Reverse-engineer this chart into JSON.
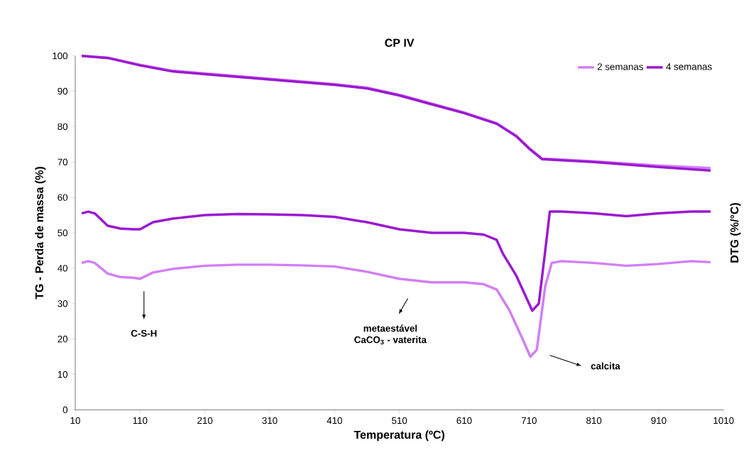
{
  "chart_data": {
    "type": "line",
    "title": "CP IV",
    "xlabel": "Temperatura (ºC)",
    "ylabel": "TG - Perda de massa (%)",
    "y2label": "DTG (%/°C)",
    "xlim": [
      10,
      1010
    ],
    "xticks": [
      10,
      110,
      210,
      310,
      410,
      510,
      610,
      710,
      810,
      910,
      1010
    ],
    "ylim": [
      0,
      100
    ],
    "yticks": [
      0,
      10,
      20,
      30,
      40,
      50,
      60,
      70,
      80,
      90,
      100
    ],
    "grid": false,
    "legend": "top right",
    "marker": "none",
    "line_style": "solid",
    "series": [
      {
        "name": "2 semanas",
        "color": "#d27ef5",
        "x": [
          20,
          60,
          110,
          160,
          210,
          310,
          410,
          460,
          510,
          560,
          610,
          660,
          690,
          710,
          730,
          810,
          910,
          990
        ],
        "values": [
          100,
          99.5,
          97.5,
          95.8,
          95,
          93.5,
          92,
          91,
          89,
          86.5,
          84,
          81,
          77.5,
          74,
          71,
          70.2,
          69,
          68.3
        ]
      },
      {
        "name": "4 semanas",
        "color": "#9b19d0",
        "x": [
          20,
          60,
          110,
          160,
          210,
          310,
          410,
          460,
          510,
          560,
          610,
          660,
          690,
          710,
          730,
          810,
          910,
          990
        ],
        "values": [
          100,
          99.4,
          97.3,
          95.6,
          94.8,
          93.3,
          91.8,
          90.8,
          88.8,
          86.3,
          83.8,
          80.8,
          77.3,
          73.8,
          70.8,
          70,
          68.6,
          67.6
        ]
      },
      {
        "color": "#d27ef5",
        "x": [
          20,
          30,
          40,
          60,
          80,
          100,
          110,
          130,
          160,
          210,
          260,
          310,
          360,
          410,
          460,
          510,
          560,
          610,
          640,
          660,
          680,
          700,
          712,
          722,
          735,
          745,
          760,
          810,
          860,
          910,
          960,
          990
        ],
        "values": [
          41.5,
          42,
          41.5,
          38.5,
          37.5,
          37.3,
          37,
          38.8,
          39.8,
          40.7,
          41,
          41,
          40.8,
          40.5,
          39,
          37,
          36,
          36,
          35.5,
          34,
          28,
          20,
          15,
          17,
          35,
          41.5,
          42,
          41.5,
          40.7,
          41.2,
          42,
          41.7
        ]
      },
      {
        "color": "#9b19d0",
        "x": [
          20,
          30,
          40,
          60,
          80,
          100,
          110,
          130,
          160,
          210,
          260,
          310,
          360,
          410,
          460,
          510,
          560,
          610,
          640,
          660,
          670,
          690,
          710,
          715,
          725,
          735,
          742,
          760,
          810,
          860,
          910,
          960,
          990
        ],
        "values": [
          55.5,
          56,
          55.5,
          52,
          51.2,
          51,
          51,
          53,
          54,
          55,
          55.3,
          55.2,
          55,
          54.5,
          53,
          51,
          50,
          50,
          49.5,
          48,
          44,
          38,
          30,
          28,
          30,
          45,
          56,
          56,
          55.5,
          54.7,
          55.5,
          56,
          56
        ]
      }
    ],
    "annotations": [
      "C-S-H",
      "metaestável\nCaCO$_{3}$ - vaterita",
      "calcita"
    ]
  }
}
